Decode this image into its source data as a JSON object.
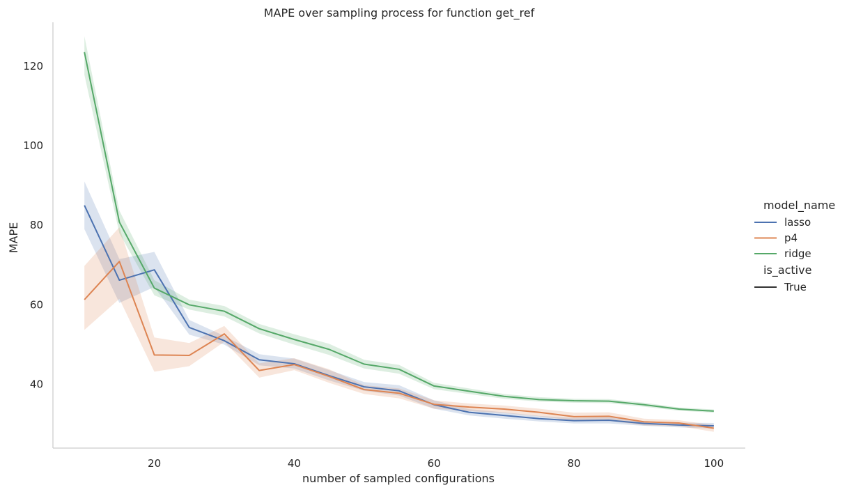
{
  "chart_data": {
    "type": "line",
    "title": "MAPE over sampling process for function get_ref",
    "xlabel": "number of sampled configurations",
    "ylabel": "MAPE",
    "xlim": [
      5.5,
      104.5
    ],
    "ylim": [
      24,
      131
    ],
    "xticks": [
      20,
      40,
      60,
      80,
      100
    ],
    "yticks": [
      40,
      60,
      80,
      100,
      120
    ],
    "grid": false,
    "legend": {
      "placement": "right",
      "hue_title": "model_name",
      "style_title": "is_active",
      "style_entries": [
        {
          "label": "True",
          "color": "#333333"
        }
      ]
    },
    "x": [
      10,
      15,
      20,
      25,
      30,
      35,
      40,
      45,
      50,
      55,
      60,
      65,
      70,
      75,
      80,
      85,
      90,
      95,
      100
    ],
    "series": [
      {
        "name": "lasso",
        "color": "#4c72b0",
        "values": [
          85.0,
          66.2,
          68.8,
          54.3,
          51.0,
          46.2,
          45.2,
          42.2,
          39.4,
          38.4,
          34.9,
          33.0,
          32.2,
          31.4,
          30.9,
          31.0,
          30.2,
          29.8,
          29.6
        ],
        "ci_low": [
          79.0,
          60.5,
          64.5,
          52.5,
          50.0,
          44.8,
          44.0,
          41.0,
          38.4,
          37.2,
          33.9,
          32.2,
          31.4,
          30.7,
          30.2,
          30.2,
          29.6,
          29.2,
          28.9
        ],
        "ci_high": [
          91.0,
          71.5,
          73.3,
          56.2,
          52.2,
          47.6,
          46.5,
          43.6,
          40.6,
          39.8,
          36.0,
          33.8,
          33.0,
          32.1,
          31.6,
          31.8,
          30.8,
          30.4,
          30.3
        ]
      },
      {
        "name": "p4",
        "color": "#dd8452",
        "values": [
          61.3,
          70.9,
          47.4,
          47.3,
          52.7,
          43.5,
          45.0,
          42.0,
          38.7,
          37.8,
          35.0,
          34.3,
          33.8,
          33.0,
          31.9,
          32.0,
          30.6,
          30.3,
          29.0
        ],
        "ci_low": [
          53.7,
          61.5,
          43.2,
          44.6,
          50.7,
          41.7,
          43.6,
          40.4,
          37.6,
          36.5,
          33.9,
          33.3,
          32.8,
          32.0,
          30.9,
          30.9,
          29.7,
          29.5,
          28.1
        ],
        "ci_high": [
          69.8,
          79.5,
          51.8,
          50.4,
          54.7,
          45.3,
          46.6,
          43.8,
          39.8,
          39.0,
          36.0,
          35.2,
          34.7,
          33.9,
          32.9,
          33.0,
          31.4,
          31.0,
          29.8
        ]
      },
      {
        "name": "ridge",
        "color": "#55a868",
        "values": [
          123.5,
          80.8,
          64.2,
          60.0,
          58.4,
          54.0,
          51.3,
          48.8,
          45.1,
          43.8,
          39.6,
          38.3,
          37.0,
          36.2,
          35.9,
          35.8,
          34.9,
          33.8,
          33.3
        ],
        "ci_low": [
          117.8,
          78.0,
          62.4,
          58.8,
          57.1,
          52.8,
          50.0,
          47.4,
          44.0,
          42.7,
          38.8,
          37.6,
          36.4,
          35.7,
          35.4,
          35.3,
          34.4,
          33.4,
          32.9
        ],
        "ci_high": [
          127.5,
          83.7,
          66.2,
          61.3,
          59.7,
          55.2,
          52.6,
          50.2,
          46.2,
          44.9,
          40.4,
          39.0,
          37.6,
          36.8,
          36.4,
          36.3,
          35.4,
          34.2,
          33.7
        ]
      }
    ]
  }
}
